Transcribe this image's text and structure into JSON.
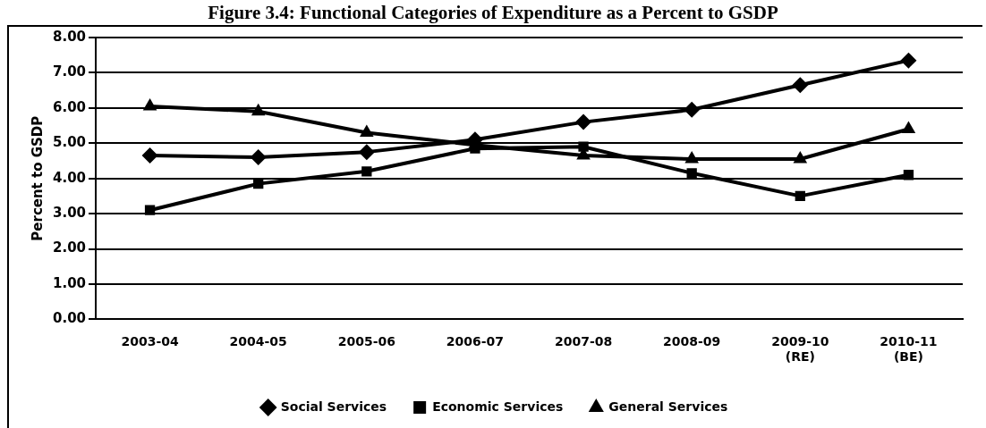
{
  "chart_data": {
    "type": "line",
    "title": "Figure 3.4: Functional Categories of Expenditure as a Percent to GSDP",
    "ylabel": "Percent to GSDP",
    "categories": [
      "2003-04",
      "2004-05",
      "2005-06",
      "2006-07",
      "2007-08",
      "2008-09",
      "2009-10 (RE)",
      "2010-11 (BE)"
    ],
    "series": [
      {
        "name": "Social Services",
        "color": "#000000",
        "marker": "diamond",
        "values": [
          4.65,
          4.6,
          4.75,
          5.1,
          5.6,
          5.95,
          6.65,
          7.35
        ]
      },
      {
        "name": "Economic Services",
        "color": "#000000",
        "marker": "square",
        "values": [
          3.1,
          3.85,
          4.2,
          4.85,
          4.9,
          4.15,
          3.5,
          4.1
        ]
      },
      {
        "name": "General Services",
        "color": "#000000",
        "marker": "triangle",
        "values": [
          6.05,
          5.9,
          5.3,
          4.95,
          4.65,
          4.55,
          4.55,
          5.4
        ]
      }
    ],
    "ylim": [
      0,
      8
    ],
    "yticks": [
      {
        "value": 0,
        "label": "0.00"
      },
      {
        "value": 1,
        "label": "1.00"
      },
      {
        "value": 2,
        "label": "2.00"
      },
      {
        "value": 3,
        "label": "3.00"
      },
      {
        "value": 4,
        "label": "4.00"
      },
      {
        "value": 5,
        "label": "5.00"
      },
      {
        "value": 6,
        "label": "6.00"
      },
      {
        "value": 7,
        "label": "7.00"
      },
      {
        "value": 8,
        "label": "8.00"
      }
    ],
    "grid": "y",
    "legend": "bottom",
    "line_style": "solid"
  }
}
